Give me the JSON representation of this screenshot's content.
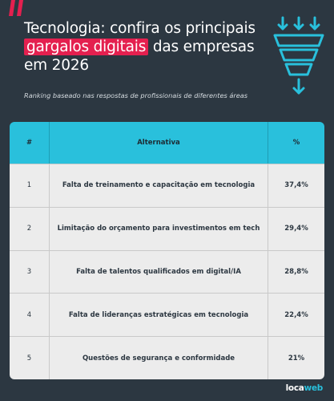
{
  "header": {
    "title_before": "Tecnologia: confira os principais ",
    "title_highlight": "gargalos digitais",
    "title_after": " das empresas em 2026",
    "subtitle": "Ranking baseado nas respostas de profissionais de diferentes áreas",
    "accent_color": "#e4204f",
    "icon": "funnel-icon"
  },
  "table": {
    "columns": [
      "#",
      "Alternativa",
      "%"
    ],
    "header_color": "#29c0dc",
    "rows": [
      {
        "rank": "1",
        "alternative": "Falta de treinamento e capacitação em tecnologia",
        "percent": "37,4%"
      },
      {
        "rank": "2",
        "alternative": "Limitação do orçamento para investimentos em tech",
        "percent": "29,4%"
      },
      {
        "rank": "3",
        "alternative": "Falta de talentos qualificados em digital/IA",
        "percent": "28,8%"
      },
      {
        "rank": "4",
        "alternative": "Falta de lideranças estratégicas em tecnologia",
        "percent": "22,4%"
      },
      {
        "rank": "5",
        "alternative": "Questões de segurança e conformidade",
        "percent": "21%"
      }
    ]
  },
  "footer": {
    "logo_part1": "loca",
    "logo_part2": "web"
  }
}
